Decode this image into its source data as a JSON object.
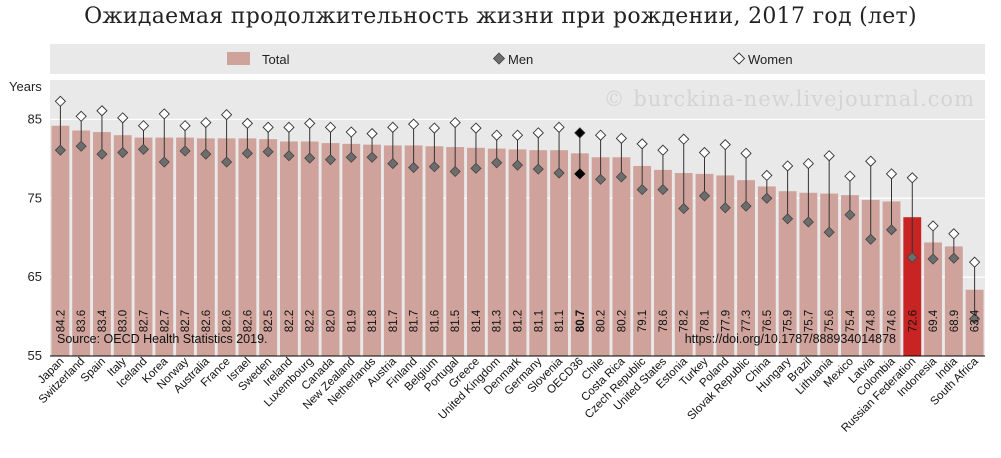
{
  "title": "Ожидаемая продолжительность жизни при рождении, 2017 год (лет)",
  "watermark": "© burckina-new.livejournal.com",
  "source_note": "Source: OECD Health Statistics 2019.",
  "doi_note": "https://doi.org/10.1787/888934014878",
  "colors": {
    "bar": "#cfa39b",
    "highlight_bar": "#c82423",
    "men_marker": "#6d6d6d",
    "women_marker": "#ffffff",
    "oecd_marker": "#000000",
    "plot_bg": "#e9e9e9",
    "highlight_text": "#c82423"
  },
  "chart_data": {
    "type": "bar",
    "title": "Ожидаемая продолжительность жизни при рождении, 2017 год (лет)",
    "ylabel": "Years",
    "ylim": [
      55,
      90
    ],
    "yticks": [
      55,
      65,
      75,
      85
    ],
    "legend": [
      "Total",
      "Men",
      "Women"
    ],
    "highlight": "Russian Federation",
    "oecd_average": "OECD36",
    "categories": [
      "Japan",
      "Switzerland",
      "Spain",
      "Italy",
      "Iceland",
      "Korea",
      "Norway",
      "Australia",
      "France",
      "Israel",
      "Sweden",
      "Ireland",
      "Luxembourg",
      "Canada",
      "New Zealand",
      "Netherlands",
      "Austria",
      "Finland",
      "Belgium",
      "Portugal",
      "Greece",
      "United Kingdom",
      "Denmark",
      "Germany",
      "Slovenia",
      "OECD36",
      "Chile",
      "Costa Rica",
      "Czech Republic",
      "United States",
      "Estonia",
      "Turkey",
      "Poland",
      "Slovak Republic",
      "China",
      "Hungary",
      "Brazil",
      "Lithuania",
      "Mexico",
      "Latvia",
      "Colombia",
      "Russian Federation",
      "Indonesia",
      "India",
      "South Africa"
    ],
    "series": [
      {
        "name": "Total",
        "values": [
          84.2,
          83.6,
          83.4,
          83.0,
          82.7,
          82.7,
          82.7,
          82.6,
          82.6,
          82.6,
          82.5,
          82.2,
          82.2,
          82.0,
          81.9,
          81.8,
          81.7,
          81.7,
          81.6,
          81.5,
          81.4,
          81.3,
          81.2,
          81.1,
          81.1,
          80.7,
          80.2,
          80.2,
          79.1,
          78.6,
          78.2,
          78.1,
          77.9,
          77.3,
          76.5,
          75.9,
          75.7,
          75.6,
          75.4,
          74.8,
          74.6,
          72.6,
          69.4,
          68.9,
          63.4
        ]
      },
      {
        "name": "Men",
        "values": [
          81.1,
          81.6,
          80.6,
          80.8,
          81.2,
          79.6,
          81.0,
          80.6,
          79.6,
          80.7,
          80.9,
          80.4,
          80.1,
          79.9,
          80.2,
          80.2,
          79.4,
          78.9,
          79.0,
          78.4,
          78.8,
          79.5,
          79.2,
          78.7,
          78.2,
          78.1,
          77.4,
          77.7,
          76.1,
          76.1,
          73.7,
          75.3,
          73.8,
          74.0,
          75.0,
          72.4,
          72.0,
          70.7,
          72.9,
          69.8,
          71.0,
          67.5,
          67.3,
          67.4,
          59.7
        ]
      },
      {
        "name": "Women",
        "values": [
          87.3,
          85.4,
          86.1,
          85.2,
          84.2,
          85.7,
          84.2,
          84.6,
          85.6,
          84.5,
          84.0,
          84.0,
          84.5,
          84.0,
          83.4,
          83.2,
          84.0,
          84.4,
          83.9,
          84.6,
          83.9,
          83.0,
          83.0,
          83.3,
          84.0,
          83.3,
          83.0,
          82.6,
          81.9,
          81.1,
          82.5,
          80.8,
          81.8,
          80.7,
          77.9,
          79.1,
          79.4,
          80.4,
          77.8,
          79.7,
          78.1,
          77.6,
          71.5,
          70.5,
          66.9
        ]
      }
    ]
  }
}
